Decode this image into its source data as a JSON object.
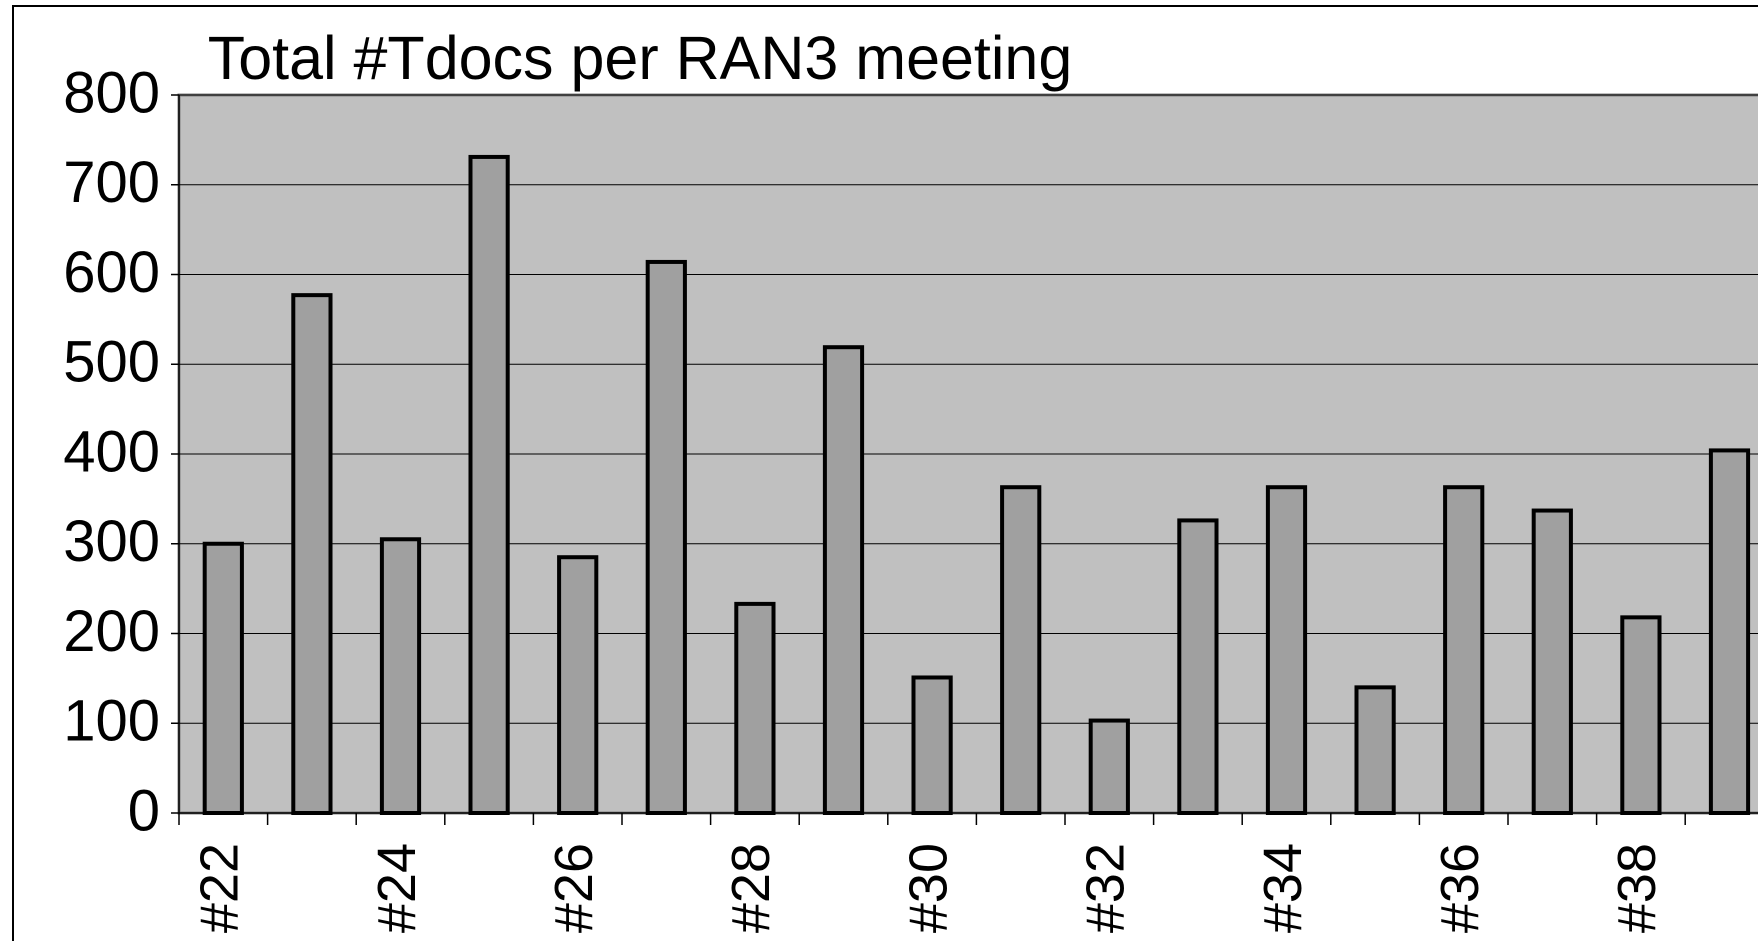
{
  "chart_data": {
    "type": "bar",
    "title": "Total #Tdocs per RAN3 meeting",
    "categories": [
      "#22",
      null,
      "#24",
      null,
      "#26",
      null,
      "#28",
      null,
      "#30",
      null,
      "#32",
      null,
      "#34",
      null,
      "#36",
      null,
      "#38",
      null
    ],
    "values": [
      300,
      577,
      305,
      731,
      285,
      614,
      233,
      519,
      151,
      363,
      103,
      326,
      363,
      140,
      363,
      337,
      218,
      404
    ],
    "color": "#a0a0a0",
    "plot_background": "#c0c0c0",
    "ylim": [
      0,
      800
    ],
    "yticks": [
      0,
      100,
      200,
      300,
      400,
      500,
      600,
      700,
      800
    ],
    "grid": true
  }
}
